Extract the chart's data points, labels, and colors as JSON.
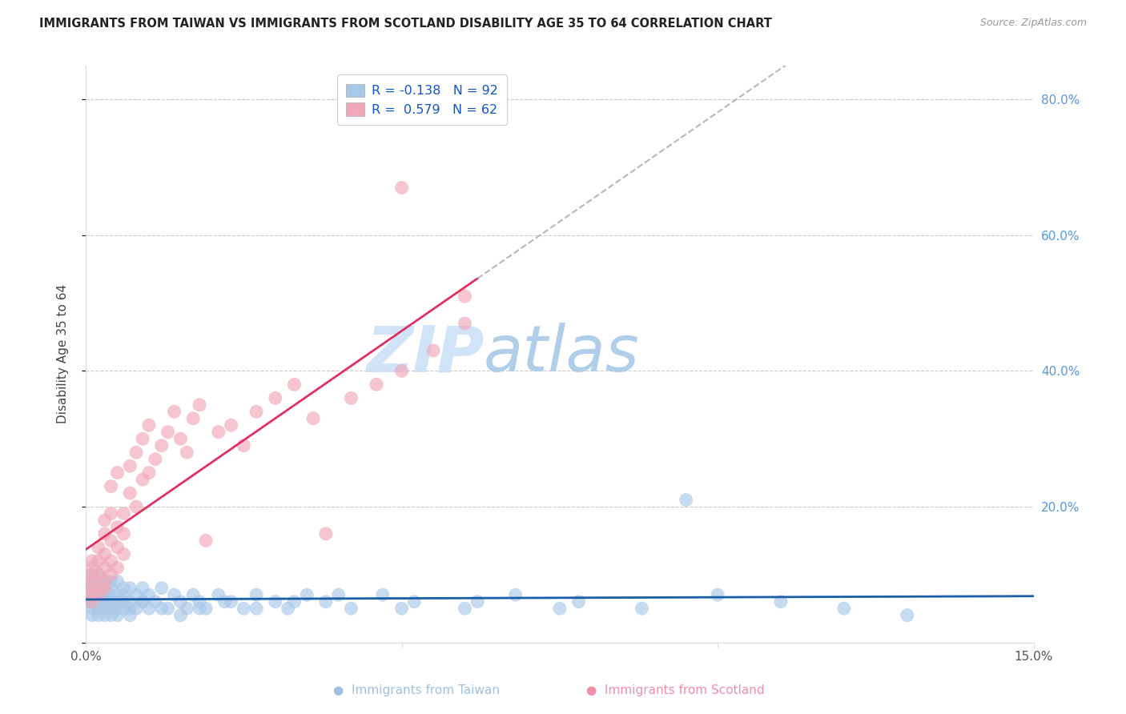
{
  "title": "IMMIGRANTS FROM TAIWAN VS IMMIGRANTS FROM SCOTLAND DISABILITY AGE 35 TO 64 CORRELATION CHART",
  "source": "Source: ZipAtlas.com",
  "ylabel": "Disability Age 35 to 64",
  "legend_taiwan": "Immigrants from Taiwan",
  "legend_scotland": "Immigrants from Scotland",
  "R_taiwan": -0.138,
  "N_taiwan": 92,
  "R_scotland": 0.579,
  "N_scotland": 62,
  "xlim": [
    0.0,
    0.15
  ],
  "ylim": [
    0.0,
    0.85
  ],
  "color_taiwan": "#a8c8e8",
  "color_scotland": "#f0a8b8",
  "line_taiwan": "#1a5ea8",
  "line_scotland": "#e03060",
  "line_dash": "#b8b8b8",
  "taiwan_x": [
    0.0005,
    0.001,
    0.001,
    0.001,
    0.001,
    0.001,
    0.001,
    0.001,
    0.001,
    0.002,
    0.002,
    0.002,
    0.002,
    0.002,
    0.002,
    0.002,
    0.002,
    0.002,
    0.002,
    0.003,
    0.003,
    0.003,
    0.003,
    0.003,
    0.003,
    0.003,
    0.003,
    0.004,
    0.004,
    0.004,
    0.004,
    0.004,
    0.004,
    0.005,
    0.005,
    0.005,
    0.005,
    0.005,
    0.006,
    0.006,
    0.006,
    0.006,
    0.007,
    0.007,
    0.007,
    0.007,
    0.008,
    0.008,
    0.009,
    0.009,
    0.01,
    0.01,
    0.011,
    0.012,
    0.013,
    0.014,
    0.015,
    0.016,
    0.017,
    0.018,
    0.019,
    0.021,
    0.023,
    0.025,
    0.027,
    0.03,
    0.032,
    0.035,
    0.038,
    0.042,
    0.047,
    0.052,
    0.06,
    0.068,
    0.078,
    0.088,
    0.1,
    0.11,
    0.12,
    0.13,
    0.095,
    0.075,
    0.062,
    0.05,
    0.04,
    0.033,
    0.027,
    0.022,
    0.018,
    0.015,
    0.012,
    0.009
  ],
  "taiwan_y": [
    0.06,
    0.08,
    0.05,
    0.09,
    0.07,
    0.04,
    0.1,
    0.06,
    0.08,
    0.07,
    0.05,
    0.09,
    0.06,
    0.04,
    0.08,
    0.06,
    0.1,
    0.05,
    0.07,
    0.08,
    0.06,
    0.04,
    0.09,
    0.05,
    0.07,
    0.06,
    0.08,
    0.05,
    0.07,
    0.06,
    0.09,
    0.04,
    0.08,
    0.06,
    0.05,
    0.07,
    0.09,
    0.04,
    0.06,
    0.08,
    0.05,
    0.07,
    0.06,
    0.05,
    0.08,
    0.04,
    0.07,
    0.05,
    0.06,
    0.08,
    0.05,
    0.07,
    0.06,
    0.08,
    0.05,
    0.07,
    0.06,
    0.05,
    0.07,
    0.06,
    0.05,
    0.07,
    0.06,
    0.05,
    0.07,
    0.06,
    0.05,
    0.07,
    0.06,
    0.05,
    0.07,
    0.06,
    0.05,
    0.07,
    0.06,
    0.05,
    0.07,
    0.06,
    0.05,
    0.04,
    0.21,
    0.05,
    0.06,
    0.05,
    0.07,
    0.06,
    0.05,
    0.06,
    0.05,
    0.04,
    0.05,
    0.06
  ],
  "scotland_x": [
    0.0005,
    0.001,
    0.001,
    0.001,
    0.001,
    0.001,
    0.001,
    0.002,
    0.002,
    0.002,
    0.002,
    0.002,
    0.003,
    0.003,
    0.003,
    0.003,
    0.003,
    0.003,
    0.004,
    0.004,
    0.004,
    0.004,
    0.004,
    0.005,
    0.005,
    0.005,
    0.005,
    0.006,
    0.006,
    0.006,
    0.007,
    0.007,
    0.008,
    0.008,
    0.009,
    0.009,
    0.01,
    0.01,
    0.011,
    0.012,
    0.013,
    0.014,
    0.015,
    0.016,
    0.017,
    0.018,
    0.019,
    0.021,
    0.023,
    0.025,
    0.027,
    0.03,
    0.033,
    0.036,
    0.038,
    0.042,
    0.046,
    0.05,
    0.055,
    0.06,
    0.05,
    0.06
  ],
  "scotland_y": [
    0.08,
    0.1,
    0.07,
    0.12,
    0.09,
    0.06,
    0.11,
    0.1,
    0.08,
    0.12,
    0.07,
    0.14,
    0.11,
    0.09,
    0.13,
    0.16,
    0.08,
    0.18,
    0.12,
    0.1,
    0.15,
    0.19,
    0.23,
    0.14,
    0.11,
    0.17,
    0.25,
    0.16,
    0.13,
    0.19,
    0.26,
    0.22,
    0.28,
    0.2,
    0.24,
    0.3,
    0.25,
    0.32,
    0.27,
    0.29,
    0.31,
    0.34,
    0.3,
    0.28,
    0.33,
    0.35,
    0.15,
    0.31,
    0.32,
    0.29,
    0.34,
    0.36,
    0.38,
    0.33,
    0.16,
    0.36,
    0.38,
    0.4,
    0.43,
    0.47,
    0.67,
    0.51
  ],
  "background_color": "#ffffff",
  "watermark_zip": "ZIP",
  "watermark_atlas": "atlas",
  "watermark_color_zip": "#c8dff5",
  "watermark_color_atlas": "#a0c8e8"
}
